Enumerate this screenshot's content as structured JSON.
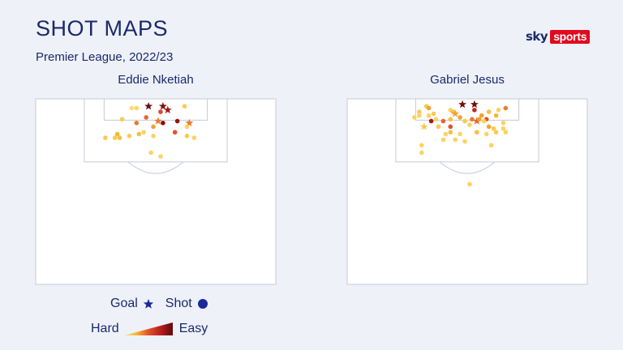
{
  "header": {
    "title": "SHOT MAPS",
    "subtitle": "Premier League, 2022/23"
  },
  "branding": {
    "sky": "sky",
    "sports": "sports"
  },
  "legend": {
    "goal_label": "Goal",
    "shot_label": "Shot",
    "hard_label": "Hard",
    "easy_label": "Easy",
    "goal_icon": "star-icon",
    "shot_icon": "circle-icon",
    "gradient_colors": [
      "#ffe680",
      "#f7b733",
      "#e0532b",
      "#b81e1e",
      "#5c0a0a"
    ],
    "shot_symbol_color": "#1a2a9c"
  },
  "chart_data": {
    "type": "scatter",
    "difficulty_scale": "0 = hard, 1 = easy",
    "panels": [
      {
        "player": "Eddie Nketiah",
        "shots": [
          {
            "x": 0.4,
            "y": 0.05,
            "d": 0.05,
            "goal": false
          },
          {
            "x": 0.42,
            "y": 0.05,
            "d": 0.08,
            "goal": false
          },
          {
            "x": 0.47,
            "y": 0.04,
            "d": 0.95,
            "goal": true
          },
          {
            "x": 0.52,
            "y": 0.07,
            "d": 0.55,
            "goal": false
          },
          {
            "x": 0.53,
            "y": 0.04,
            "d": 0.9,
            "goal": true
          },
          {
            "x": 0.55,
            "y": 0.06,
            "d": 0.8,
            "goal": true
          },
          {
            "x": 0.62,
            "y": 0.04,
            "d": 0.15,
            "goal": false
          },
          {
            "x": 0.36,
            "y": 0.11,
            "d": 0.15,
            "goal": false
          },
          {
            "x": 0.46,
            "y": 0.1,
            "d": 0.45,
            "goal": false
          },
          {
            "x": 0.42,
            "y": 0.13,
            "d": 0.4,
            "goal": false
          },
          {
            "x": 0.51,
            "y": 0.12,
            "d": 0.4,
            "goal": true
          },
          {
            "x": 0.53,
            "y": 0.13,
            "d": 0.9,
            "goal": false
          },
          {
            "x": 0.59,
            "y": 0.12,
            "d": 0.85,
            "goal": false
          },
          {
            "x": 0.64,
            "y": 0.13,
            "d": 0.4,
            "goal": true
          },
          {
            "x": 0.34,
            "y": 0.19,
            "d": 0.25,
            "goal": false
          },
          {
            "x": 0.49,
            "y": 0.15,
            "d": 0.3,
            "goal": false
          },
          {
            "x": 0.63,
            "y": 0.15,
            "d": 0.1,
            "goal": false
          },
          {
            "x": 0.43,
            "y": 0.19,
            "d": 0.2,
            "goal": false
          },
          {
            "x": 0.45,
            "y": 0.18,
            "d": 0.1,
            "goal": false
          },
          {
            "x": 0.58,
            "y": 0.18,
            "d": 0.5,
            "goal": false
          },
          {
            "x": 0.29,
            "y": 0.21,
            "d": 0.15,
            "goal": false
          },
          {
            "x": 0.33,
            "y": 0.21,
            "d": 0.15,
            "goal": false
          },
          {
            "x": 0.35,
            "y": 0.21,
            "d": 0.2,
            "goal": false
          },
          {
            "x": 0.39,
            "y": 0.2,
            "d": 0.15,
            "goal": false
          },
          {
            "x": 0.49,
            "y": 0.2,
            "d": 0.1,
            "goal": false
          },
          {
            "x": 0.63,
            "y": 0.2,
            "d": 0.15,
            "goal": false
          },
          {
            "x": 0.66,
            "y": 0.21,
            "d": 0.1,
            "goal": false
          },
          {
            "x": 0.48,
            "y": 0.29,
            "d": 0.1,
            "goal": false
          },
          {
            "x": 0.52,
            "y": 0.31,
            "d": 0.1,
            "goal": false
          }
        ]
      },
      {
        "player": "Gabriel Jesus",
        "shots": [
          {
            "x": 0.33,
            "y": 0.04,
            "d": 0.15,
            "goal": false
          },
          {
            "x": 0.34,
            "y": 0.05,
            "d": 0.3,
            "goal": false
          },
          {
            "x": 0.48,
            "y": 0.03,
            "d": 0.95,
            "goal": true
          },
          {
            "x": 0.53,
            "y": 0.03,
            "d": 0.95,
            "goal": true
          },
          {
            "x": 0.66,
            "y": 0.05,
            "d": 0.4,
            "goal": false
          },
          {
            "x": 0.3,
            "y": 0.07,
            "d": 0.15,
            "goal": false
          },
          {
            "x": 0.36,
            "y": 0.08,
            "d": 0.15,
            "goal": false
          },
          {
            "x": 0.43,
            "y": 0.06,
            "d": 0.1,
            "goal": false
          },
          {
            "x": 0.44,
            "y": 0.07,
            "d": 0.2,
            "goal": false
          },
          {
            "x": 0.45,
            "y": 0.08,
            "d": 0.3,
            "goal": true
          },
          {
            "x": 0.53,
            "y": 0.06,
            "d": 0.7,
            "goal": false
          },
          {
            "x": 0.59,
            "y": 0.07,
            "d": 0.2,
            "goal": false
          },
          {
            "x": 0.63,
            "y": 0.06,
            "d": 0.1,
            "goal": false
          },
          {
            "x": 0.3,
            "y": 0.09,
            "d": 0.1,
            "goal": false
          },
          {
            "x": 0.34,
            "y": 0.09,
            "d": 0.1,
            "goal": false
          },
          {
            "x": 0.37,
            "y": 0.11,
            "d": 0.1,
            "goal": false
          },
          {
            "x": 0.47,
            "y": 0.1,
            "d": 0.3,
            "goal": false
          },
          {
            "x": 0.56,
            "y": 0.09,
            "d": 0.3,
            "goal": false
          },
          {
            "x": 0.58,
            "y": 0.11,
            "d": 0.5,
            "goal": false
          },
          {
            "x": 0.62,
            "y": 0.09,
            "d": 0.25,
            "goal": false
          },
          {
            "x": 0.28,
            "y": 0.1,
            "d": 0.1,
            "goal": false
          },
          {
            "x": 0.35,
            "y": 0.12,
            "d": 0.8,
            "goal": false
          },
          {
            "x": 0.4,
            "y": 0.12,
            "d": 0.45,
            "goal": false
          },
          {
            "x": 0.43,
            "y": 0.11,
            "d": 0.2,
            "goal": false
          },
          {
            "x": 0.49,
            "y": 0.12,
            "d": 0.15,
            "goal": false
          },
          {
            "x": 0.52,
            "y": 0.11,
            "d": 0.4,
            "goal": false
          },
          {
            "x": 0.54,
            "y": 0.12,
            "d": 0.45,
            "goal": true
          },
          {
            "x": 0.55,
            "y": 0.11,
            "d": 0.3,
            "goal": false
          },
          {
            "x": 0.57,
            "y": 0.12,
            "d": 0.1,
            "goal": false
          },
          {
            "x": 0.65,
            "y": 0.13,
            "d": 0.1,
            "goal": false
          },
          {
            "x": 0.32,
            "y": 0.15,
            "d": 0.15,
            "goal": true
          },
          {
            "x": 0.38,
            "y": 0.15,
            "d": 0.15,
            "goal": false
          },
          {
            "x": 0.43,
            "y": 0.15,
            "d": 0.5,
            "goal": false
          },
          {
            "x": 0.51,
            "y": 0.14,
            "d": 0.1,
            "goal": false
          },
          {
            "x": 0.59,
            "y": 0.15,
            "d": 0.3,
            "goal": false
          },
          {
            "x": 0.61,
            "y": 0.16,
            "d": 0.15,
            "goal": false
          },
          {
            "x": 0.65,
            "y": 0.16,
            "d": 0.1,
            "goal": false
          },
          {
            "x": 0.41,
            "y": 0.19,
            "d": 0.1,
            "goal": false
          },
          {
            "x": 0.43,
            "y": 0.18,
            "d": 0.2,
            "goal": false
          },
          {
            "x": 0.47,
            "y": 0.19,
            "d": 0.1,
            "goal": false
          },
          {
            "x": 0.54,
            "y": 0.18,
            "d": 0.2,
            "goal": false
          },
          {
            "x": 0.58,
            "y": 0.19,
            "d": 0.1,
            "goal": false
          },
          {
            "x": 0.62,
            "y": 0.18,
            "d": 0.15,
            "goal": false
          },
          {
            "x": 0.66,
            "y": 0.18,
            "d": 0.1,
            "goal": false
          },
          {
            "x": 0.31,
            "y": 0.25,
            "d": 0.1,
            "goal": false
          },
          {
            "x": 0.4,
            "y": 0.22,
            "d": 0.1,
            "goal": false
          },
          {
            "x": 0.45,
            "y": 0.22,
            "d": 0.1,
            "goal": false
          },
          {
            "x": 0.49,
            "y": 0.23,
            "d": 0.1,
            "goal": false
          },
          {
            "x": 0.6,
            "y": 0.25,
            "d": 0.1,
            "goal": false
          },
          {
            "x": 0.31,
            "y": 0.29,
            "d": 0.1,
            "goal": false
          },
          {
            "x": 0.51,
            "y": 0.46,
            "d": 0.1,
            "goal": false
          }
        ]
      }
    ]
  }
}
